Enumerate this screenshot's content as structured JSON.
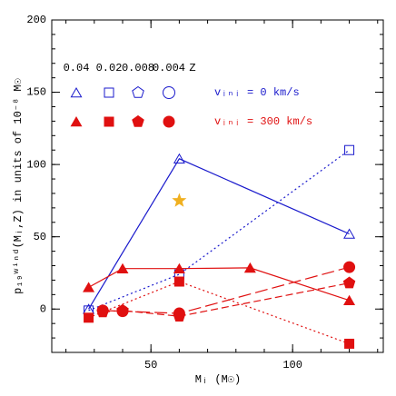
{
  "chart_data": {
    "type": "line",
    "x_label": "Mᵢ (M☉)",
    "y_label": "p₁₉ʷⁱⁿᵈ(Mᵢ,Z) in units of 10⁻⁸ M☉",
    "xlim": [
      15,
      132
    ],
    "ylim": [
      -30,
      200
    ],
    "xticks": [
      50,
      100
    ],
    "yticks": [
      0,
      50,
      100,
      150,
      200
    ],
    "minor_tick_step": 10,
    "legend": {
      "z_values": [
        "0.04",
        "0.02",
        "0.008",
        "0.004"
      ],
      "z_label": "Z",
      "rows": [
        "vᵢₙᵢ = 0 km/s",
        "vᵢₙᵢ = 300 km/s"
      ]
    },
    "series": [
      {
        "z": 0,
        "row": 0,
        "marker": "triangle",
        "filled": false,
        "dash": "solid",
        "color": "#1a1acc",
        "x": [
          28,
          60,
          120
        ],
        "values": [
          0,
          104,
          52
        ]
      },
      {
        "z": 1,
        "row": 0,
        "marker": "square",
        "filled": false,
        "dash": "dotted",
        "color": "#1a1acc",
        "x": [
          28,
          60,
          120
        ],
        "values": [
          -1,
          24,
          110
        ]
      },
      {
        "z": 0,
        "row": 1,
        "marker": "triangle",
        "filled": true,
        "dash": "solid",
        "color": "#e01010",
        "x": [
          28,
          40,
          60,
          85,
          120
        ],
        "values": [
          15,
          28,
          28,
          28.5,
          6
        ]
      },
      {
        "z": 1,
        "row": 1,
        "marker": "square",
        "filled": true,
        "dash": "dotted",
        "color": "#e01010",
        "x": [
          28,
          60,
          120
        ],
        "values": [
          -6,
          19,
          -24
        ]
      },
      {
        "z": 2,
        "row": 1,
        "marker": "pentagon",
        "filled": true,
        "dash": "dashed",
        "color": "#e01010",
        "x": [
          33,
          40,
          60,
          120
        ],
        "values": [
          -2,
          -1,
          -5,
          18
        ]
      },
      {
        "z": 3,
        "row": 1,
        "marker": "circle",
        "filled": true,
        "dash": "longdash",
        "color": "#e01010",
        "x": [
          33,
          40,
          60,
          120
        ],
        "values": [
          -1,
          -1.5,
          -3,
          29
        ]
      },
      {
        "marker": "star",
        "filled": true,
        "dash": "none",
        "color": "#f0b020",
        "x": [
          60
        ],
        "values": [
          75
        ]
      }
    ]
  }
}
